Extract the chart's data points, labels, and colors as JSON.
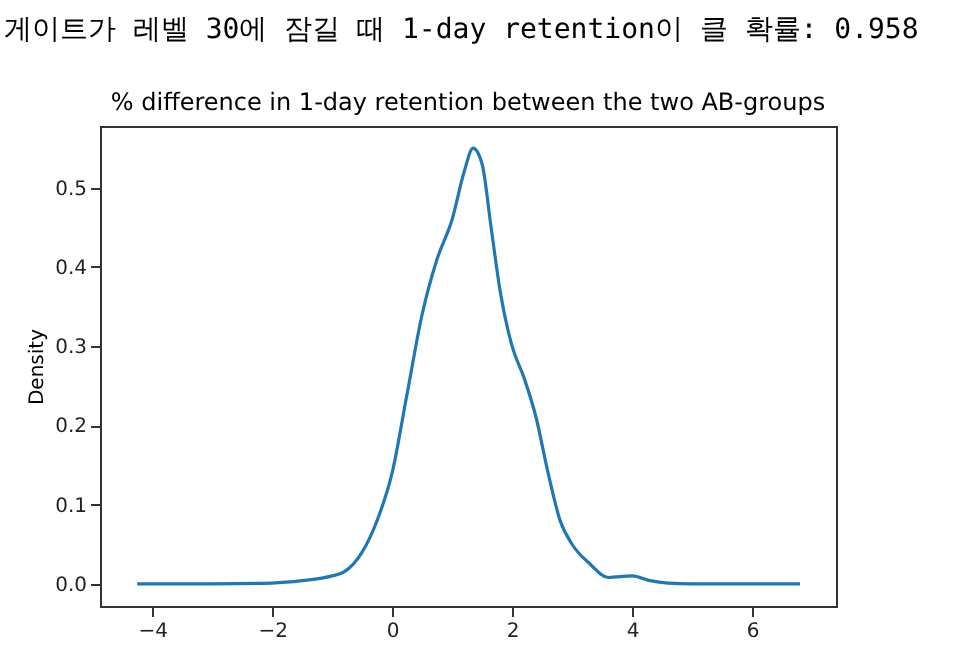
{
  "chart_data": {
    "type": "line",
    "title": "게이트가 레벨 30에 잠길 때 1-day retention이 클 확률: 0.958",
    "subtitle": "% difference in 1-day retention between the two AB-groups",
    "ylabel": "Density",
    "xlim": [
      -4.87,
      7.4
    ],
    "xticks": [
      -4,
      -2,
      0,
      2,
      4,
      6
    ],
    "ylim": [
      -0.028,
      0.578
    ],
    "yticks": [
      {
        "value": 0,
        "label": "0.0"
      },
      0.1,
      0.2,
      0.3,
      0.4,
      0.5
    ],
    "grid": false,
    "marker": "none",
    "line_style": "solid",
    "series": [
      {
        "color": "#1f77b4",
        "x": [
          -4.25,
          -3,
          -2,
          -1.5,
          -1,
          -0.8,
          -0.5,
          -0.25,
          0,
          0.25,
          0.5,
          0.75,
          1.0,
          1.2,
          1.35,
          1.5,
          1.65,
          1.8,
          2.0,
          2.2,
          2.4,
          2.6,
          2.8,
          3.0,
          3.3,
          3.6,
          4.0,
          4.3,
          4.6,
          5,
          6,
          6.8
        ],
        "values": [
          0,
          0,
          0.001,
          0.004,
          0.01,
          0.015,
          0.04,
          0.08,
          0.14,
          0.24,
          0.34,
          0.41,
          0.46,
          0.52,
          0.55,
          0.53,
          0.45,
          0.37,
          0.3,
          0.26,
          0.21,
          0.14,
          0.08,
          0.05,
          0.025,
          0.008,
          0.01,
          0.004,
          0.001,
          0,
          0,
          0
        ]
      }
    ]
  }
}
